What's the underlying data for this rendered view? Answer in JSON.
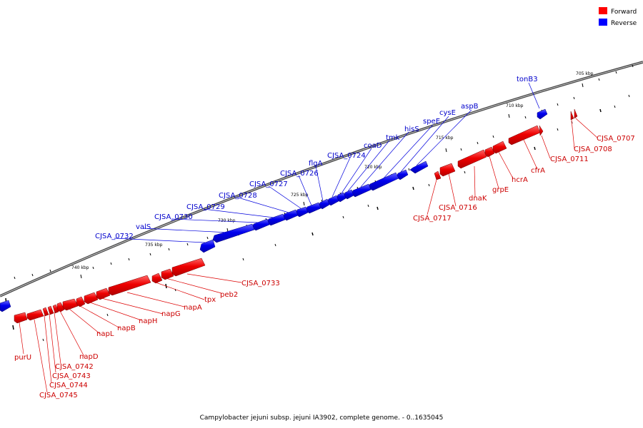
{
  "legend": {
    "forward": {
      "label": "Forward",
      "color": "#ff0000"
    },
    "reverse": {
      "label": "Reverse",
      "color": "#0000ff"
    }
  },
  "caption": "Campylobacter jejuni subsp. jejuni IA3902, complete genome. - 0..1635045",
  "ticks": [
    "705 kbp",
    "710 kbp",
    "715 kbp",
    "720 kbp",
    "725 kbp",
    "730 kbp",
    "735 kbp",
    "740 kbp"
  ],
  "reverse_genes": [
    {
      "name": "tonB3"
    },
    {
      "name": "aspB"
    },
    {
      "name": "cysE"
    },
    {
      "name": "speE"
    },
    {
      "name": "hisS"
    },
    {
      "name": "tmk"
    },
    {
      "name": "coaD"
    },
    {
      "name": "CJSA_0724"
    },
    {
      "name": "flgA"
    },
    {
      "name": "CJSA_0726"
    },
    {
      "name": "CJSA_0727"
    },
    {
      "name": "CJSA_0728"
    },
    {
      "name": "CJSA_0729"
    },
    {
      "name": "CJSA_0730"
    },
    {
      "name": "valS"
    },
    {
      "name": "CJSA_0732"
    }
  ],
  "forward_genes_right": [
    {
      "name": "CJSA_0707"
    },
    {
      "name": "CJSA_0708"
    },
    {
      "name": "CJSA_0711"
    },
    {
      "name": "cfrA"
    },
    {
      "name": "hcrA"
    },
    {
      "name": "grpE"
    },
    {
      "name": "dnaK"
    },
    {
      "name": "CJSA_0716"
    },
    {
      "name": "CJSA_0717"
    }
  ],
  "forward_genes_left": [
    {
      "name": "CJSA_0733"
    },
    {
      "name": "peb2"
    },
    {
      "name": "tpx"
    },
    {
      "name": "napA"
    },
    {
      "name": "napG"
    },
    {
      "name": "napH"
    },
    {
      "name": "napB"
    },
    {
      "name": "napL"
    },
    {
      "name": "napD"
    },
    {
      "name": "purU"
    },
    {
      "name": "CJSA_0742"
    },
    {
      "name": "CJSA_0743"
    },
    {
      "name": "CJSA_0744"
    },
    {
      "name": "CJSA_0745"
    }
  ]
}
